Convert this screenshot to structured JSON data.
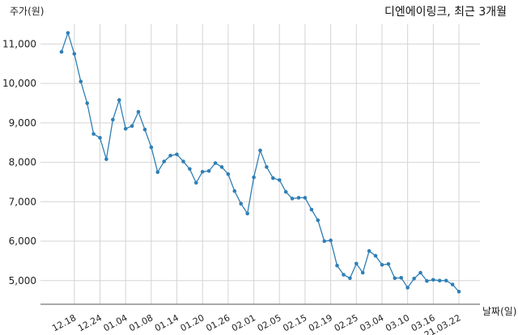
{
  "chart_data": {
    "type": "line",
    "title": "디엔에이링크, 최근 3개월",
    "ylabel": "주가(원)",
    "xlabel": "날짜(일)",
    "ylim": [
      4400,
      11500
    ],
    "yticks": [
      5000,
      6000,
      7000,
      8000,
      9000,
      10000,
      11000
    ],
    "ytick_labels": [
      "5,000",
      "6,000",
      "7,000",
      "8,000",
      "9,000",
      "10,000",
      "11,000"
    ],
    "grid": true,
    "xtick_labels": [
      "12.18",
      "12.24",
      "01.04",
      "01.08",
      "01.14",
      "01.20",
      "01.26",
      "02.01",
      "02.05",
      "02.15",
      "02.19",
      "02.25",
      "03.04",
      "03.10",
      "03.16",
      "21.03.22"
    ],
    "xtick_index": [
      2,
      6,
      10,
      14,
      18,
      22,
      26,
      30,
      34,
      38,
      42,
      46,
      50,
      54,
      58,
      62
    ],
    "colors": {
      "line": "#2f7fb5",
      "grid": "#d4d4d4"
    },
    "values": [
      10800,
      11280,
      10750,
      10050,
      9500,
      8720,
      8620,
      8080,
      9080,
      9580,
      8850,
      8920,
      9280,
      8830,
      8380,
      7750,
      8020,
      8170,
      8200,
      8020,
      7830,
      7480,
      7760,
      7780,
      7980,
      7880,
      7700,
      7270,
      6950,
      6700,
      7620,
      8300,
      7880,
      7600,
      7550,
      7250,
      7080,
      7100,
      7100,
      6800,
      6530,
      6000,
      6020,
      5380,
      5150,
      5060,
      5430,
      5200,
      5750,
      5630,
      5400,
      5420,
      5060,
      5070,
      4820,
      5050,
      5200,
      4990,
      5020,
      5000,
      5000,
      4900,
      4720
    ]
  }
}
